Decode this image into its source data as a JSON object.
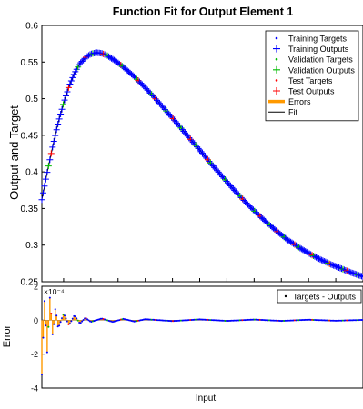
{
  "chart_data": [
    {
      "type": "line",
      "title": "Function Fit for Output Element 1",
      "ylabel": "Output and Target",
      "xlim": [
        1,
        60
      ],
      "ylim": [
        0.25,
        0.6
      ],
      "x_ticks": [
        5,
        10,
        15,
        20,
        25,
        30,
        35,
        40,
        45,
        50,
        55
      ],
      "y_ticks": [
        0.25,
        0.3,
        0.35,
        0.4,
        0.45,
        0.5,
        0.55,
        0.6
      ],
      "y_tick_labels": [
        "0.25",
        "0.3",
        "0.35",
        "0.4",
        "0.45",
        "0.5",
        "0.55",
        "0.6"
      ],
      "legend_position": "top-right",
      "legend": [
        {
          "label": "Training Targets",
          "marker": "dot",
          "color": "#0000ff"
        },
        {
          "label": "Training Outputs",
          "marker": "plus",
          "color": "#0000ff"
        },
        {
          "label": "Validation Targets",
          "marker": "dot",
          "color": "#00bb00"
        },
        {
          "label": "Validation Outputs",
          "marker": "plus",
          "color": "#00bb00"
        },
        {
          "label": "Test Targets",
          "marker": "dot",
          "color": "#ff0000"
        },
        {
          "label": "Test Outputs",
          "marker": "plus",
          "color": "#ff0000"
        },
        {
          "label": "Errors",
          "marker": "thickline",
          "color": "#ff9900"
        },
        {
          "label": "Fit",
          "marker": "line",
          "color": "#000000"
        }
      ],
      "series": [
        {
          "name": "Fit",
          "x": [
            1,
            2,
            3,
            4,
            5,
            6,
            7,
            8,
            9,
            10,
            11,
            12,
            13,
            14,
            15,
            16,
            18,
            20,
            22,
            24,
            26,
            28,
            30,
            32,
            34,
            36,
            38,
            40,
            42,
            44,
            46,
            48,
            50,
            52,
            54,
            56,
            58,
            60
          ],
          "y": [
            0.362,
            0.4,
            0.435,
            0.467,
            0.494,
            0.517,
            0.535,
            0.548,
            0.556,
            0.561,
            0.563,
            0.562,
            0.559,
            0.554,
            0.549,
            0.543,
            0.53,
            0.515,
            0.499,
            0.482,
            0.465,
            0.447,
            0.43,
            0.412,
            0.395,
            0.378,
            0.362,
            0.347,
            0.333,
            0.32,
            0.308,
            0.298,
            0.289,
            0.281,
            0.274,
            0.268,
            0.262,
            0.257
          ]
        }
      ]
    },
    {
      "type": "line",
      "xlabel": "Input",
      "ylabel": "Error",
      "exponent_label": "×10⁻⁴",
      "xlim": [
        1,
        60
      ],
      "ylim": [
        -4,
        2
      ],
      "y_ticks": [
        -4,
        -2,
        0,
        2
      ],
      "y_tick_labels": [
        "-4",
        "-2",
        "0",
        "2"
      ],
      "legend_position": "right",
      "legend": [
        {
          "label": "Targets - Outputs",
          "marker": "dot",
          "color": "#000000"
        }
      ],
      "series": [
        {
          "name": "Errors",
          "x": [
            1,
            1.5,
            2,
            2.5,
            3,
            3.5,
            4,
            5,
            6,
            7,
            8,
            9,
            10,
            12,
            14,
            16,
            18,
            20,
            25,
            30,
            35,
            40,
            45,
            50,
            55,
            60
          ],
          "y": [
            -3.2,
            1.2,
            -2.0,
            1.5,
            -1.0,
            0.8,
            -0.5,
            0.4,
            -0.3,
            0.3,
            -0.2,
            0.15,
            -0.1,
            0.1,
            -0.1,
            0.08,
            -0.08,
            0.06,
            -0.05,
            0.05,
            -0.04,
            0.04,
            -0.04,
            0.03,
            -0.03,
            0.02
          ]
        }
      ]
    }
  ]
}
